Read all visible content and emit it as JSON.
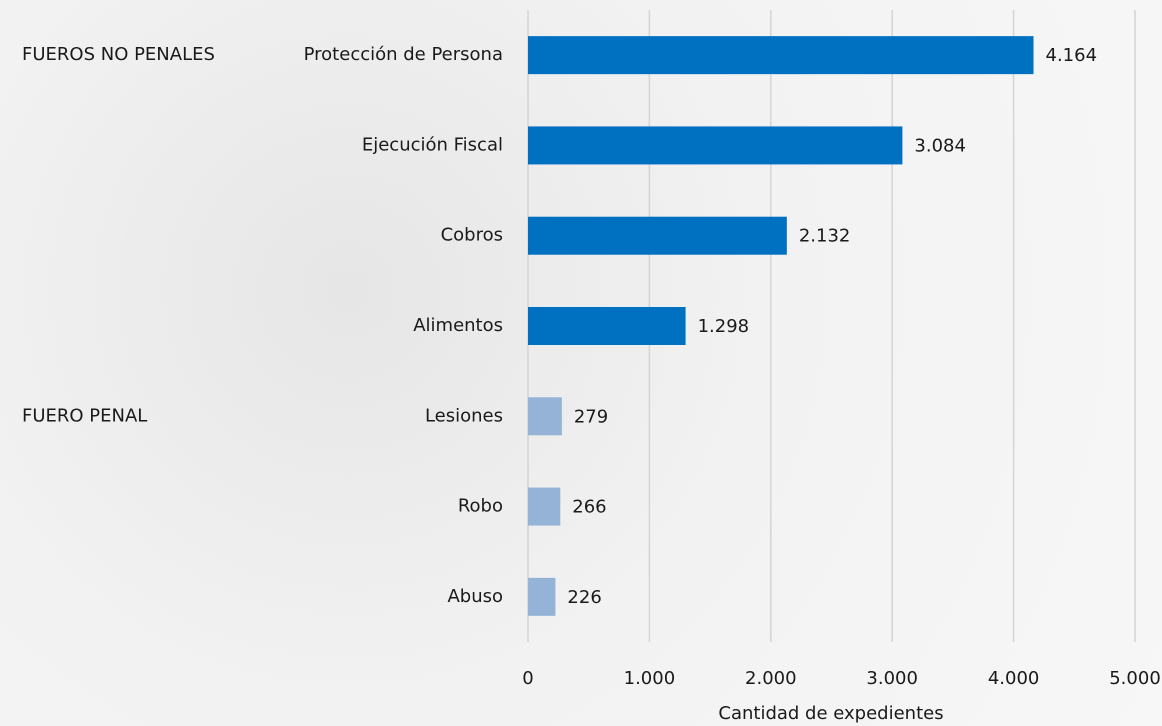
{
  "chart_data": {
    "type": "bar",
    "orientation": "horizontal",
    "groups": [
      {
        "label": "FUEROS NO PENALES",
        "color": "#0070c0",
        "categories": [
          "Protección de Persona",
          "Ejecución Fiscal",
          "Cobros",
          "Alimentos"
        ],
        "values": [
          4164,
          3084,
          2132,
          1298
        ],
        "value_labels": [
          "4.164",
          "3.084",
          "2.132",
          "1.298"
        ]
      },
      {
        "label": "FUERO PENAL",
        "color": "#95b3d7",
        "categories": [
          "Lesiones",
          "Robo",
          "Abuso"
        ],
        "values": [
          279,
          266,
          226
        ],
        "value_labels": [
          "279",
          "266",
          "226"
        ]
      }
    ],
    "xlabel": "Cantidad de expedientes",
    "xlim": [
      0,
      5000
    ],
    "xticks": [
      0,
      {
        "value": 1000,
        "label": "1.000"
      },
      {
        "value": 2000,
        "label": "2.000"
      },
      {
        "value": 3000,
        "label": "3.000"
      },
      {
        "value": 4000,
        "label": "4.000"
      },
      {
        "value": 5000,
        "label": "5.000"
      }
    ],
    "grid": true
  }
}
